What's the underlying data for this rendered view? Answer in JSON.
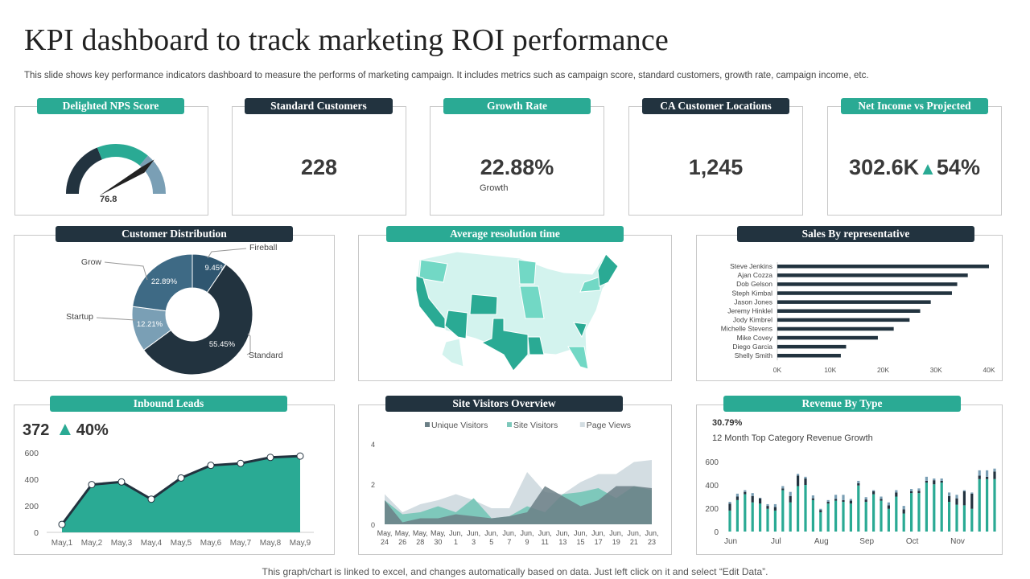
{
  "title": "KPI dashboard to track marketing ROI performance",
  "subtitle": "This slide shows key performance indicators dashboard to measure the performs of marketing campaign. It includes metrics such as campaign score, standard customers, growth rate, campaign income, etc.",
  "colors": {
    "teal": "#2aaa94",
    "dark": "#22333f",
    "slate": "#7a9fb5",
    "light_teal": "#d3f3ee",
    "mid_teal": "#72d8c5"
  },
  "kpis": {
    "nps": {
      "label": "Delighted NPS Score",
      "value": "76.8",
      "gauge_value": 76.8
    },
    "standard": {
      "label": "Standard Customers",
      "value": "228"
    },
    "growth": {
      "label": "Growth Rate",
      "value": "22.88%",
      "caption": "Growth"
    },
    "ca": {
      "label": "CA Customer Locations",
      "value": "1,245"
    },
    "net": {
      "label": "Net Income vs Projected",
      "value": "302.6K",
      "icon": "triangle-up-icon",
      "change": "54%"
    }
  },
  "distribution": {
    "label": "Customer Distribution",
    "chart_data": {
      "type": "pie",
      "donut": true,
      "slices": [
        {
          "name": "Fireball",
          "value": 9.45,
          "label": "9.45%",
          "color": "#2f5670"
        },
        {
          "name": "Standard",
          "value": 55.45,
          "label": "55.45%",
          "color": "#22333f"
        },
        {
          "name": "Startup",
          "value": 12.21,
          "label": "12.21%",
          "color": "#7a9fb5"
        },
        {
          "name": "Grow",
          "value": 22.89,
          "label": "22.89%",
          "color": "#3e6a85"
        }
      ]
    }
  },
  "map": {
    "label": "Average resolution time"
  },
  "sales": {
    "label": "Sales By representative",
    "chart_data": {
      "type": "bar",
      "orientation": "horizontal",
      "categories": [
        "Steve Jenkins",
        "Ajan Cozza",
        "Dob Gelson",
        "Steph Kimbal",
        "Jason Jones",
        "Jeremy Hinklel",
        "Jody Kimbrel",
        "Michelle Stevens",
        "Mike Covey",
        "Diego Garcia",
        "Shelly Smith"
      ],
      "values": [
        40000,
        36000,
        34000,
        33000,
        29000,
        27000,
        25000,
        22000,
        19000,
        13000,
        12000
      ],
      "xlim": [
        0,
        40000
      ],
      "xticks": [
        "0K",
        "10K",
        "20K",
        "30K",
        "40K"
      ],
      "color": "#22333f"
    }
  },
  "inbound": {
    "label": "Inbound Leads",
    "value": "372",
    "icon": "triangle-up-icon",
    "change": "40%",
    "chart_data": {
      "type": "area",
      "categories": [
        "May,1",
        "May,2",
        "May,3",
        "May,4",
        "May,5",
        "May,6",
        "May,7",
        "May,8",
        "May,9"
      ],
      "values": [
        60,
        360,
        380,
        250,
        410,
        505,
        520,
        565,
        575
      ],
      "ylim": [
        0,
        600
      ],
      "yticks": [
        "0",
        "200",
        "400",
        "600"
      ]
    }
  },
  "visitors": {
    "label": "Site Visitors Overview",
    "chart_data": {
      "type": "area",
      "categories": [
        [
          "May,",
          "24"
        ],
        [
          "May,",
          "26"
        ],
        [
          "May,",
          "28"
        ],
        [
          "May,",
          "30"
        ],
        [
          "Jun,",
          "1"
        ],
        [
          "Jun,",
          "3"
        ],
        [
          "Jun,",
          "5"
        ],
        [
          "Jun,",
          "7"
        ],
        [
          "Jun,",
          "9"
        ],
        [
          "Jun,",
          "11"
        ],
        [
          "Jun,",
          "13"
        ],
        [
          "Jun,",
          "15"
        ],
        [
          "Jun,",
          "17"
        ],
        [
          "Jun,",
          "19"
        ],
        [
          "Jun,",
          "21"
        ],
        [
          "Jun,",
          "23"
        ]
      ],
      "ylim": [
        0,
        4
      ],
      "yticks": [
        "0",
        "2",
        "4"
      ],
      "legend": "top",
      "series": [
        {
          "name": "Page Views",
          "color": "#d3dde2",
          "values": [
            1.5,
            0.6,
            1.0,
            1.2,
            1.5,
            1.2,
            0.8,
            0.8,
            2.6,
            1.6,
            1.5,
            2.1,
            2.5,
            2.5,
            3.1,
            3.2
          ]
        },
        {
          "name": "Site Visitors",
          "color": "#7ec8bb",
          "values": [
            1.2,
            0.5,
            0.6,
            0.9,
            0.6,
            1.3,
            0.3,
            0.4,
            0.9,
            0.6,
            1.5,
            1.6,
            1.8,
            1.3,
            1.9,
            1.7
          ]
        },
        {
          "name": "Unique Visitors",
          "color": "#6b7f86",
          "values": [
            1.2,
            0.1,
            0.3,
            0.3,
            0.5,
            0.4,
            0.3,
            0.4,
            0.6,
            1.9,
            1.4,
            0.9,
            1.2,
            1.9,
            1.9,
            1.8
          ]
        }
      ],
      "legend_order": [
        "Unique Visitors",
        "Site Visitors",
        "Page Views"
      ]
    }
  },
  "revenue": {
    "label": "Revenue By Type",
    "value": "30.79%",
    "caption": "12 Month Top Category Revenue Growth",
    "chart_data": {
      "type": "bar",
      "stacked": true,
      "ylim": [
        0,
        600
      ],
      "yticks": [
        "0",
        "200",
        "400",
        "600"
      ],
      "month_labels": [
        {
          "label": "Jun",
          "index": 0
        },
        {
          "label": "Jul",
          "index": 6
        },
        {
          "label": "Aug",
          "index": 12
        },
        {
          "label": "Sep",
          "index": 18
        },
        {
          "label": "Oct",
          "index": 24
        },
        {
          "label": "Nov",
          "index": 30
        }
      ],
      "series": [
        {
          "color": "#2aaa94",
          "values": [
            180,
            270,
            320,
            250,
            240,
            195,
            180,
            355,
            250,
            390,
            400,
            270,
            165,
            240,
            265,
            255,
            240,
            395,
            255,
            320,
            265,
            195,
            300,
            155,
            330,
            330,
            420,
            405,
            420,
            255,
            230,
            225,
            195,
            450,
            450,
            450
          ]
        },
        {
          "color": "#22333f",
          "values": [
            60,
            30,
            20,
            55,
            45,
            25,
            30,
            15,
            55,
            90,
            55,
            15,
            20,
            15,
            15,
            15,
            25,
            20,
            20,
            25,
            15,
            30,
            35,
            35,
            15,
            20,
            15,
            35,
            15,
            50,
            55,
            120,
            130,
            30,
            20,
            65
          ]
        },
        {
          "color": "#7a9fb5",
          "values": [
            15,
            25,
            15,
            25,
            5,
            15,
            25,
            20,
            35,
            15,
            15,
            25,
            10,
            15,
            35,
            45,
            15,
            20,
            20,
            10,
            20,
            25,
            20,
            30,
            20,
            20,
            35,
            15,
            20,
            30,
            30,
            10,
            10,
            45,
            55,
            25
          ]
        }
      ]
    }
  },
  "footer": "This graph/chart is linked to excel,  and changes automatically based on data. Just left click on it and select “Edit Data”."
}
